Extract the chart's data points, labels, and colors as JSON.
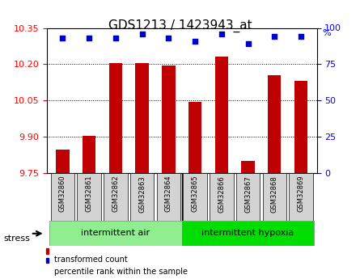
{
  "title": "GDS1213 / 1423943_at",
  "samples": [
    "GSM32860",
    "GSM32861",
    "GSM32862",
    "GSM32863",
    "GSM32864",
    "GSM32865",
    "GSM32866",
    "GSM32867",
    "GSM32868",
    "GSM32869"
  ],
  "bar_values": [
    9.845,
    9.905,
    10.205,
    10.205,
    10.195,
    10.045,
    10.23,
    9.8,
    10.155,
    10.13
  ],
  "percentile_values": [
    93,
    93,
    93,
    96,
    93,
    91,
    96,
    89,
    94,
    94
  ],
  "ylim_left": [
    9.75,
    10.35
  ],
  "ylim_right": [
    0,
    100
  ],
  "yticks_left": [
    9.75,
    9.9,
    10.05,
    10.2,
    10.35
  ],
  "yticks_right": [
    0,
    25,
    50,
    75,
    100
  ],
  "bar_color": "#C00000",
  "dot_color": "#0000CC",
  "group1": {
    "label": "intermittent air",
    "samples": 5,
    "color": "#90EE90"
  },
  "group2": {
    "label": "intermittent hypoxia",
    "samples": 5,
    "color": "#00DD00"
  },
  "stress_label": "stress",
  "legend_bar": "transformed count",
  "legend_dot": "percentile rank within the sample",
  "grid_lines": [
    9.9,
    10.05,
    10.2
  ],
  "background_color": "#FFFFFF",
  "plot_bg": "#FFFFFF"
}
